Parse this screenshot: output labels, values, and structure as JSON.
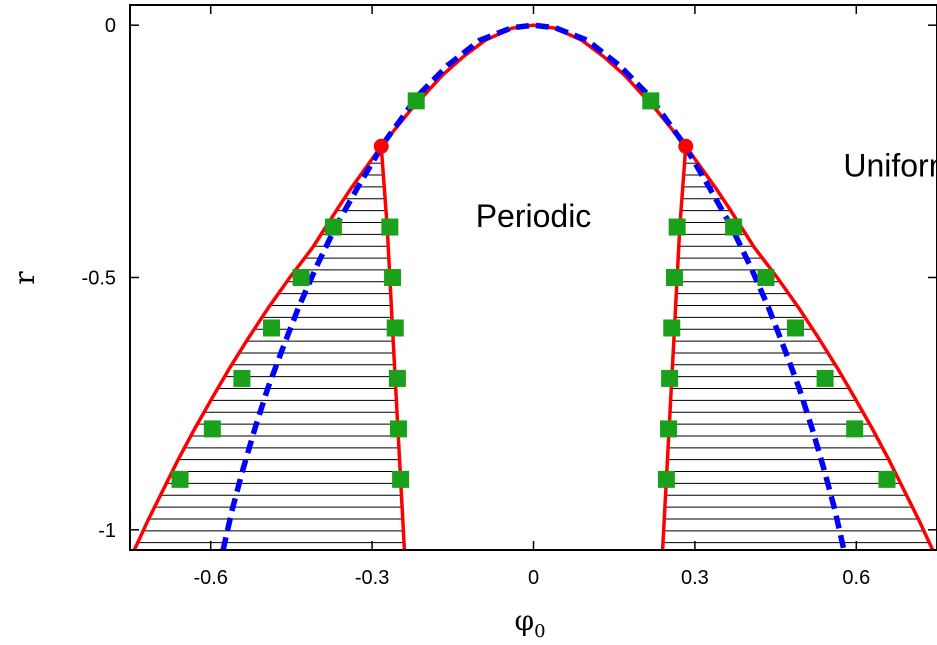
{
  "chart_data": {
    "type": "line",
    "xlabel": "φ",
    "xlabel_subscript": "0",
    "ylabel": "r",
    "xlim": [
      -0.75,
      0.75
    ],
    "ylim": [
      -1.04,
      0.04
    ],
    "x_ticks": [
      -0.6,
      -0.3,
      0,
      0.3,
      0.6
    ],
    "x_tick_labels": [
      "-0.6",
      "-0.3",
      "0",
      "0.3",
      "0.6"
    ],
    "y_ticks": [
      0,
      -0.5,
      -1
    ],
    "y_tick_labels": [
      "0",
      "-0.5",
      "-1"
    ],
    "grid": false,
    "colors": {
      "coexistence": "#ff0000",
      "spinodal": "#0000ff",
      "points": "#1aa01a",
      "critical": "#ff0000",
      "tielines": "#000000"
    },
    "series": [
      {
        "style": "solid-red-line",
        "x": [
          -0.742,
          -0.716,
          -0.688,
          -0.66,
          -0.63,
          -0.598,
          -0.565,
          -0.53,
          -0.493,
          -0.453,
          -0.41,
          -0.386,
          -0.362,
          -0.337,
          -0.31,
          -0.283,
          -0.23,
          -0.2,
          -0.17,
          -0.13,
          -0.09,
          -0.04,
          0.0,
          0.04,
          0.09,
          0.13,
          0.17,
          0.2,
          0.23,
          0.283,
          0.31,
          0.337,
          0.362,
          0.386,
          0.41,
          0.453,
          0.493,
          0.53,
          0.565,
          0.598,
          0.63,
          0.66,
          0.688,
          0.716,
          0.742
        ],
        "y": [
          -1.04,
          -0.98,
          -0.92,
          -0.86,
          -0.8,
          -0.74,
          -0.68,
          -0.62,
          -0.56,
          -0.5,
          -0.44,
          -0.4,
          -0.36,
          -0.32,
          -0.28,
          -0.24,
          -0.17,
          -0.135,
          -0.1,
          -0.062,
          -0.03,
          -0.006,
          0.0,
          -0.006,
          -0.03,
          -0.062,
          -0.1,
          -0.135,
          -0.17,
          -0.24,
          -0.28,
          -0.32,
          -0.36,
          -0.4,
          -0.44,
          -0.5,
          -0.56,
          -0.62,
          -0.68,
          -0.74,
          -0.8,
          -0.86,
          -0.92,
          -0.98,
          -1.04
        ]
      },
      {
        "style": "solid-red-line",
        "x": [
          -0.283,
          -0.272,
          -0.262,
          -0.252,
          -0.24
        ],
        "y": [
          -0.24,
          -0.4,
          -0.6,
          -0.8,
          -1.04
        ]
      },
      {
        "style": "solid-red-line",
        "x": [
          0.283,
          0.272,
          0.262,
          0.252,
          0.24
        ],
        "y": [
          -0.24,
          -0.4,
          -0.6,
          -0.8,
          -1.04
        ]
      },
      {
        "style": "dashed-blue-line",
        "x": [
          -0.577,
          -0.56,
          -0.54,
          -0.518,
          -0.494,
          -0.466,
          -0.437,
          -0.404,
          -0.368,
          -0.326,
          -0.276,
          -0.215,
          -0.16,
          -0.1,
          -0.04,
          0.0,
          0.04,
          0.1,
          0.16,
          0.215,
          0.276,
          0.326,
          0.368,
          0.404,
          0.437,
          0.466,
          0.494,
          0.518,
          0.54,
          0.56,
          0.577
        ],
        "y": [
          -1.04,
          -0.96,
          -0.88,
          -0.8,
          -0.72,
          -0.64,
          -0.56,
          -0.48,
          -0.4,
          -0.32,
          -0.23,
          -0.14,
          -0.08,
          -0.03,
          -0.005,
          0.0,
          -0.005,
          -0.03,
          -0.08,
          -0.14,
          -0.23,
          -0.32,
          -0.4,
          -0.48,
          -0.56,
          -0.64,
          -0.72,
          -0.8,
          -0.88,
          -0.96,
          -1.04
        ]
      },
      {
        "style": "green-squares",
        "x": [
          -0.218,
          0.218,
          -0.372,
          -0.267,
          -0.432,
          -0.262,
          -0.487,
          -0.257,
          -0.542,
          -0.253,
          -0.597,
          -0.251,
          -0.657,
          -0.247,
          0.372,
          0.267,
          0.432,
          0.262,
          0.487,
          0.257,
          0.542,
          0.253,
          0.597,
          0.251,
          0.657,
          0.247
        ],
        "y": [
          -0.15,
          -0.15,
          -0.4,
          -0.4,
          -0.5,
          -0.5,
          -0.6,
          -0.6,
          -0.7,
          -0.7,
          -0.8,
          -0.8,
          -0.9,
          -0.9,
          -0.4,
          -0.4,
          -0.5,
          -0.5,
          -0.6,
          -0.6,
          -0.7,
          -0.7,
          -0.8,
          -0.8,
          -0.9,
          -0.9
        ]
      },
      {
        "style": "red-circles",
        "x": [
          -0.283,
          0.283
        ],
        "y": [
          -0.24,
          -0.24
        ]
      }
    ],
    "annotations": [
      {
        "text": "Periodic",
        "x": 0.0,
        "y": -0.4
      },
      {
        "text": "Uniform",
        "x": 0.68,
        "y": -0.3
      }
    ]
  }
}
